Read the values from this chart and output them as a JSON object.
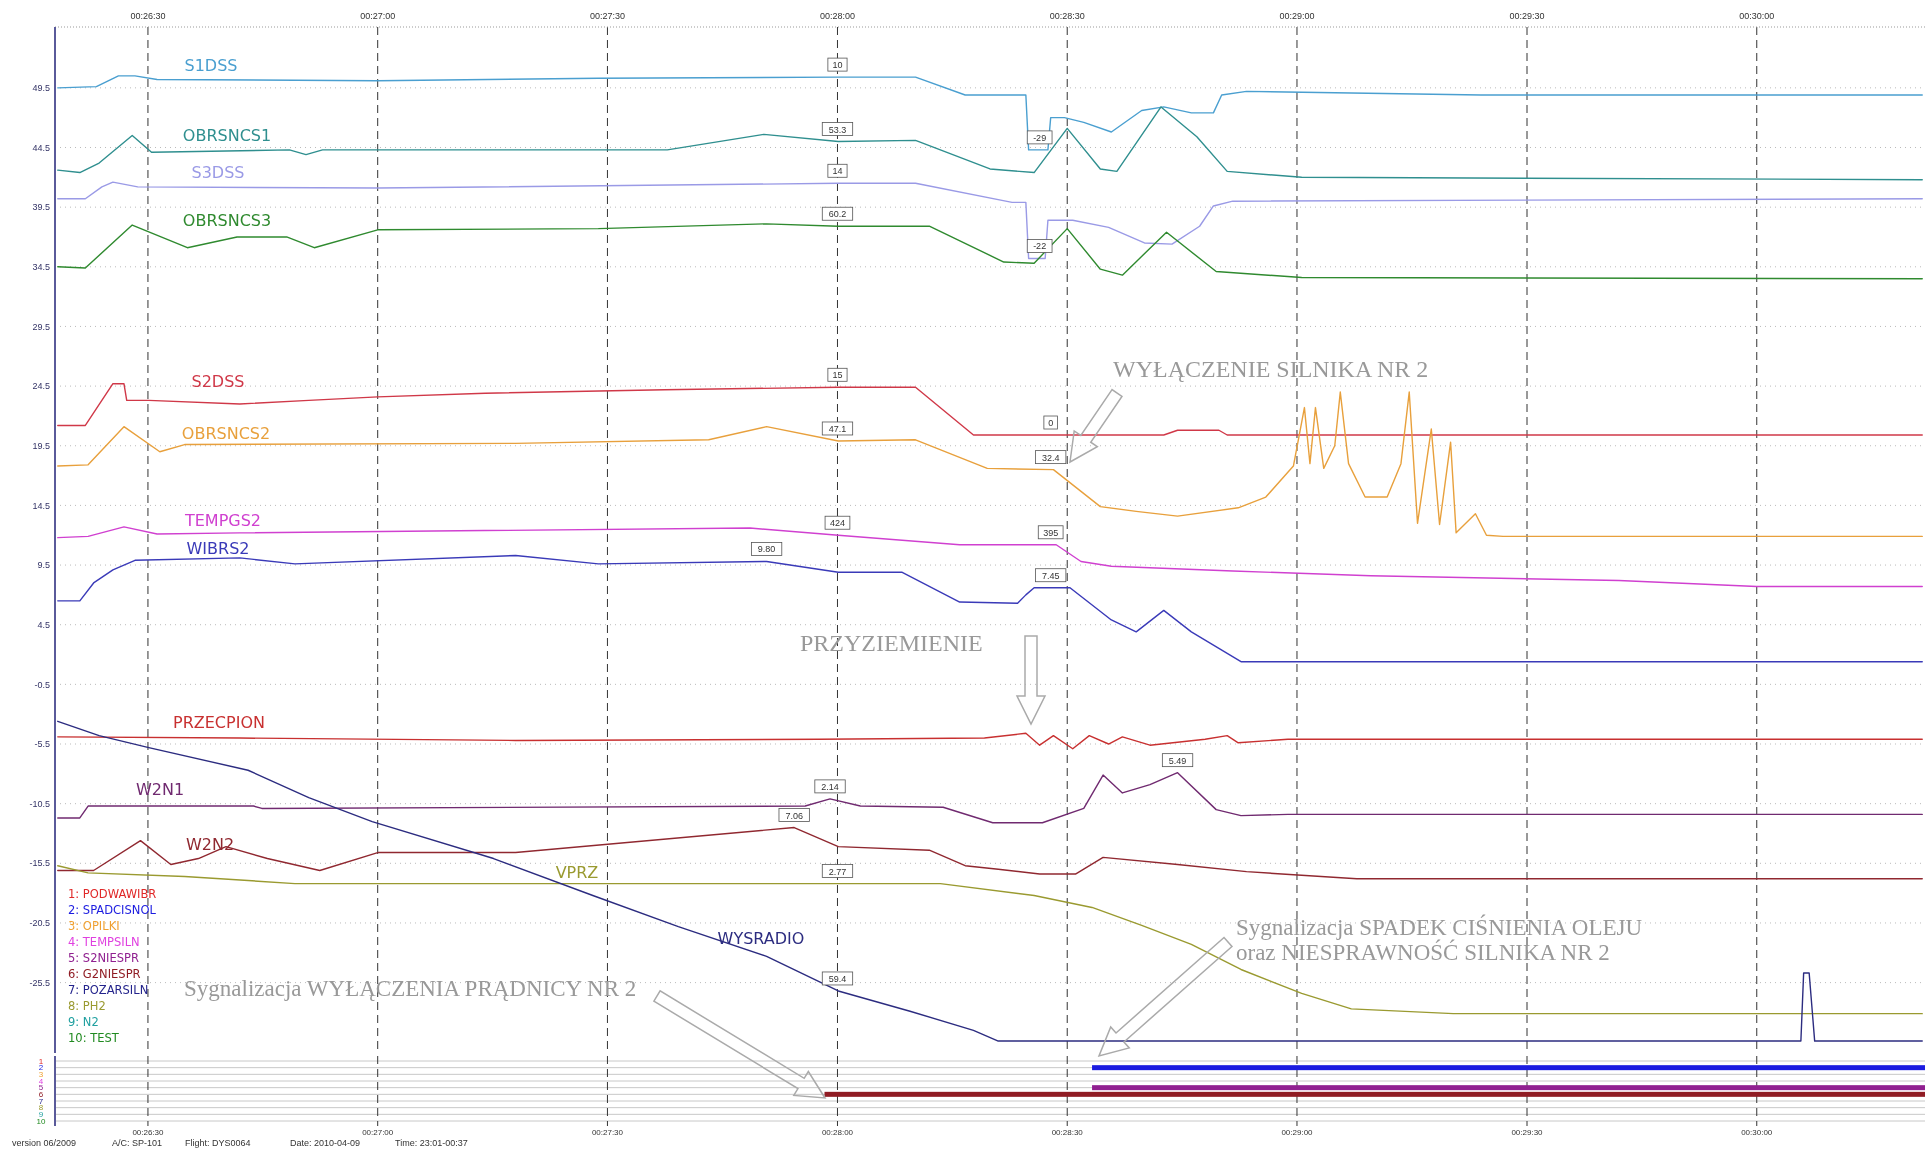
{
  "chart_data": [
    {
      "type": "line",
      "xlim": [
        0.4383,
        0.5061
      ],
      "ylim": [
        -31.4,
        54.6
      ],
      "xticks": [
        {
          "value": 0.44167,
          "label": "00:26:30"
        },
        {
          "value": 0.45,
          "label": "00:27:00"
        },
        {
          "value": 0.45833,
          "label": "00:27:30"
        },
        {
          "value": 0.46667,
          "label": "00:28:00"
        },
        {
          "value": 0.475,
          "label": "00:28:30"
        },
        {
          "value": 0.48333,
          "label": "00:29:00"
        },
        {
          "value": 0.49167,
          "label": "00:29:30"
        },
        {
          "value": 0.5,
          "label": "00:30:00"
        }
      ],
      "yticks": [
        49.5,
        44.5,
        39.5,
        34.5,
        29.5,
        24.5,
        19.5,
        14.5,
        9.5,
        4.5,
        -0.5,
        -5.5,
        -10.5,
        -15.5,
        -20.5,
        -25.5
      ],
      "grid": true,
      "series": [
        {
          "name": "S1DSS",
          "color": "#4a9fd0",
          "x": [
            0.4384,
            0.4398,
            0.4406,
            0.4412,
            0.442,
            0.45,
            0.458,
            0.4667,
            0.4695,
            0.4713,
            0.4735,
            0.4736,
            0.4743,
            0.4744,
            0.4749,
            0.4756,
            0.4766,
            0.4777,
            0.4785,
            0.4795,
            0.4803,
            0.4806,
            0.4815,
            0.49,
            0.506
          ],
          "values": [
            49.5,
            49.6,
            50.5,
            50.5,
            50.2,
            50.1,
            50.3,
            50.4,
            50.4,
            48.9,
            48.9,
            44.3,
            44.3,
            47.0,
            47.0,
            46.6,
            45.8,
            47.6,
            47.9,
            47.4,
            47.4,
            48.9,
            49.2,
            48.9,
            48.9
          ]
        },
        {
          "name": "OBRSNCS1",
          "color": "#2f8f8f",
          "x": [
            0.4384,
            0.4392,
            0.4399,
            0.4411,
            0.4418,
            0.4468,
            0.4474,
            0.448,
            0.4605,
            0.464,
            0.4667,
            0.4695,
            0.4722,
            0.4738,
            0.475,
            0.4762,
            0.4768,
            0.4784,
            0.4797,
            0.4808,
            0.4835,
            0.506
          ],
          "values": [
            42.6,
            42.4,
            43.2,
            45.5,
            44.1,
            44.3,
            43.9,
            44.3,
            44.3,
            45.6,
            45.0,
            45.1,
            42.7,
            42.4,
            46.1,
            42.7,
            42.5,
            47.9,
            45.4,
            42.5,
            42.0,
            41.8
          ]
        },
        {
          "name": "S3DSS",
          "color": "#9a9ae6",
          "x": [
            0.4384,
            0.4394,
            0.44,
            0.4404,
            0.4413,
            0.45,
            0.4667,
            0.4695,
            0.473,
            0.4735,
            0.4736,
            0.4742,
            0.4743,
            0.4752,
            0.4765,
            0.4778,
            0.4788,
            0.4798,
            0.4803,
            0.481,
            0.506
          ],
          "values": [
            40.2,
            40.2,
            41.2,
            41.6,
            41.2,
            41.1,
            41.5,
            41.5,
            39.9,
            39.9,
            35.2,
            35.2,
            38.4,
            38.4,
            37.8,
            36.5,
            36.4,
            37.9,
            39.6,
            40.0,
            40.2
          ]
        },
        {
          "name": "OBRSNCS3",
          "color": "#2f8a2f",
          "x": [
            0.4384,
            0.4394,
            0.4411,
            0.4431,
            0.4449,
            0.4467,
            0.4477,
            0.45,
            0.458,
            0.4641,
            0.4667,
            0.47,
            0.4727,
            0.4738,
            0.475,
            0.4762,
            0.477,
            0.4786,
            0.4804,
            0.4835,
            0.506
          ],
          "values": [
            34.5,
            34.4,
            38.0,
            36.1,
            37.0,
            37.0,
            36.1,
            37.6,
            37.7,
            38.1,
            37.9,
            37.9,
            34.9,
            34.8,
            37.7,
            34.3,
            33.8,
            37.4,
            34.1,
            33.6,
            33.5
          ]
        },
        {
          "name": "S2DSS",
          "color": "#d03848",
          "x": [
            0.4384,
            0.4394,
            0.4404,
            0.4408,
            0.4409,
            0.4417,
            0.445,
            0.4475,
            0.45,
            0.4539,
            0.4604,
            0.4667,
            0.4695,
            0.4716,
            0.4785,
            0.479,
            0.4805,
            0.4808,
            0.506
          ],
          "values": [
            21.2,
            21.2,
            24.7,
            24.7,
            23.3,
            23.3,
            23.0,
            23.3,
            23.6,
            23.9,
            24.2,
            24.4,
            24.4,
            20.4,
            20.4,
            20.8,
            20.8,
            20.4,
            20.4
          ]
        },
        {
          "name": "OBRSNCS2",
          "color": "#e8a03c",
          "x": [
            0.4384,
            0.4395,
            0.4408,
            0.4421,
            0.443,
            0.455,
            0.462,
            0.4641,
            0.4667,
            0.4695,
            0.4721,
            0.4745,
            0.4762,
            0.4775,
            0.479,
            0.4812,
            0.4822,
            0.4832,
            0.4836,
            0.4838,
            0.484,
            0.4843,
            0.4847,
            0.4849,
            0.4852,
            0.4858,
            0.4866,
            0.4871,
            0.4874,
            0.4877,
            0.4882,
            0.4885,
            0.4889,
            0.4891,
            0.4898,
            0.4902,
            0.4908,
            0.506
          ],
          "values": [
            17.8,
            17.9,
            21.1,
            19.0,
            19.6,
            19.7,
            20.0,
            21.1,
            19.9,
            20.0,
            17.6,
            17.5,
            14.4,
            14.0,
            13.6,
            14.3,
            15.2,
            17.8,
            22.7,
            18.0,
            22.7,
            17.6,
            19.5,
            24.0,
            18.0,
            15.2,
            15.2,
            18.0,
            24.0,
            13.0,
            20.9,
            12.9,
            19.8,
            12.2,
            13.8,
            12.0,
            11.9,
            11.9
          ]
        },
        {
          "name": "TEMPGS2",
          "color": "#d040d0",
          "x": [
            0.4384,
            0.4395,
            0.4408,
            0.442,
            0.445,
            0.4635,
            0.4667,
            0.4711,
            0.4746,
            0.4755,
            0.4766,
            0.481,
            0.486,
            0.495,
            0.5,
            0.506
          ],
          "values": [
            11.8,
            11.9,
            12.7,
            12.1,
            12.2,
            12.6,
            12.0,
            11.2,
            11.2,
            9.8,
            9.4,
            9.0,
            8.6,
            8.2,
            7.7,
            7.7
          ]
        },
        {
          "name": "WIBRS2",
          "color": "#3a3ab8",
          "x": [
            0.4384,
            0.4392,
            0.4397,
            0.4404,
            0.4412,
            0.445,
            0.447,
            0.455,
            0.458,
            0.4641,
            0.4667,
            0.469,
            0.4711,
            0.4732,
            0.4735,
            0.4738,
            0.4751,
            0.4766,
            0.4775,
            0.4785,
            0.4795,
            0.4813,
            0.506
          ],
          "values": [
            6.5,
            6.5,
            8.0,
            9.1,
            9.9,
            10.1,
            9.6,
            10.3,
            9.6,
            9.8,
            8.9,
            8.9,
            6.4,
            6.3,
            7.0,
            7.6,
            7.6,
            4.9,
            3.9,
            5.7,
            3.9,
            1.4,
            1.4
          ]
        },
        {
          "name": "PRZECPION",
          "color": "#c83030",
          "x": [
            0.4384,
            0.445,
            0.455,
            0.466,
            0.472,
            0.4735,
            0.474,
            0.4745,
            0.4752,
            0.4758,
            0.4765,
            0.477,
            0.478,
            0.48,
            0.4808,
            0.4812,
            0.483,
            0.506
          ],
          "values": [
            -4.9,
            -5.0,
            -5.2,
            -5.1,
            -5.0,
            -4.6,
            -5.6,
            -4.8,
            -5.9,
            -4.8,
            -5.5,
            -4.9,
            -5.6,
            -5.1,
            -4.8,
            -5.4,
            -5.1,
            -5.1
          ]
        },
        {
          "name": "W2N1",
          "color": "#702a70",
          "x": [
            0.4384,
            0.4392,
            0.4395,
            0.4455,
            0.4458,
            0.4655,
            0.4664,
            0.4675,
            0.4705,
            0.4723,
            0.4741,
            0.4756,
            0.4763,
            0.477,
            0.478,
            0.479,
            0.4804,
            0.4813,
            0.483,
            0.506
          ],
          "values": [
            -11.7,
            -11.7,
            -10.7,
            -10.7,
            -10.9,
            -10.7,
            -10.1,
            -10.7,
            -10.8,
            -12.1,
            -12.1,
            -10.9,
            -8.1,
            -9.6,
            -8.9,
            -7.9,
            -11.0,
            -11.5,
            -11.4,
            -11.4
          ]
        },
        {
          "name": "W2N2",
          "color": "#902830",
          "x": [
            0.4384,
            0.4397,
            0.4414,
            0.4425,
            0.4435,
            0.4445,
            0.446,
            0.4479,
            0.45,
            0.455,
            0.4651,
            0.4667,
            0.47,
            0.4713,
            0.4725,
            0.474,
            0.4753,
            0.4763,
            0.479,
            0.4815,
            0.4855,
            0.506
          ],
          "values": [
            -16.1,
            -16.1,
            -13.6,
            -15.6,
            -15.1,
            -14.1,
            -15.1,
            -16.1,
            -14.6,
            -14.6,
            -12.5,
            -14.1,
            -14.4,
            -15.7,
            -16.0,
            -16.4,
            -16.4,
            -15.0,
            -15.6,
            -16.2,
            -16.8,
            -16.8
          ]
        },
        {
          "name": "VPRZ",
          "color": "#9a9a30",
          "x": [
            0.4384,
            0.4395,
            0.443,
            0.447,
            0.4704,
            0.4738,
            0.4759,
            0.4777,
            0.4795,
            0.4813,
            0.4835,
            0.4853,
            0.489,
            0.506
          ],
          "values": [
            -15.7,
            -16.3,
            -16.6,
            -17.2,
            -17.2,
            -18.2,
            -19.2,
            -20.7,
            -22.3,
            -24.4,
            -26.4,
            -27.7,
            -28.1,
            -28.1
          ]
        },
        {
          "name": "WYSRADIO",
          "color": "#2c2c80",
          "x": [
            0.4384,
            0.4399,
            0.4417,
            0.4453,
            0.4475,
            0.4498,
            0.4542,
            0.4578,
            0.4609,
            0.4641,
            0.4667,
            0.4693,
            0.4716,
            0.4725,
            0.5016,
            0.5017,
            0.5019,
            0.5021,
            0.506
          ],
          "values": [
            -3.6,
            -4.8,
            -5.8,
            -7.7,
            -10.0,
            -12.0,
            -15.1,
            -18.2,
            -20.8,
            -23.3,
            -26.2,
            -27.9,
            -29.5,
            -30.4,
            -30.4,
            -24.7,
            -24.7,
            -30.4,
            -30.4
          ]
        }
      ],
      "annotations": [
        {
          "text": "10",
          "x": 0.46667,
          "y": 50.4
        },
        {
          "text": "53.3",
          "x": 0.46667,
          "y": 45.0
        },
        {
          "text": "14",
          "x": 0.46667,
          "y": 41.5
        },
        {
          "text": "60.2",
          "x": 0.46667,
          "y": 37.9
        },
        {
          "text": "15",
          "x": 0.46667,
          "y": 24.4
        },
        {
          "text": "47.1",
          "x": 0.46667,
          "y": 19.9
        },
        {
          "text": "424",
          "x": 0.46667,
          "y": 12.0
        },
        {
          "text": "9.80",
          "x": 0.4641,
          "y": 9.8
        },
        {
          "text": "2.14",
          "x": 0.4664,
          "y": -10.1
        },
        {
          "text": "7.06",
          "x": 0.4651,
          "y": -12.5
        },
        {
          "text": "2.77",
          "x": 0.46667,
          "y": -17.2
        },
        {
          "text": "59.4",
          "x": 0.46667,
          "y": -26.2
        },
        {
          "text": "-29",
          "x": 0.474,
          "y": 44.3
        },
        {
          "text": "-22",
          "x": 0.474,
          "y": 35.2
        },
        {
          "text": "0",
          "x": 0.4744,
          "y": 20.4
        },
        {
          "text": "32.4",
          "x": 0.4744,
          "y": 17.5
        },
        {
          "text": "395",
          "x": 0.4744,
          "y": 11.2
        },
        {
          "text": "7.45",
          "x": 0.4744,
          "y": 7.6
        },
        {
          "text": "5.49",
          "x": 0.479,
          "y": -7.9
        },
        "WYŁĄCZENIE SILNIKA NR 2",
        "PRZYZIEMIENIE"
      ]
    },
    {
      "type": "bar",
      "orientation": "horizontal",
      "xlim": [
        0.4383,
        0.5061
      ],
      "xticks": [
        {
          "value": 0.44167,
          "label": "00:26:30"
        },
        {
          "value": 0.45,
          "label": "00:27:00"
        },
        {
          "value": 0.45833,
          "label": "00:27:30"
        },
        {
          "value": 0.46667,
          "label": "00:28:00"
        },
        {
          "value": 0.475,
          "label": "00:28:30"
        },
        {
          "value": 0.48333,
          "label": "00:29:00"
        },
        {
          "value": 0.49167,
          "label": "00:29:30"
        },
        {
          "value": 0.5,
          "label": "00:30:00"
        }
      ],
      "grid": true,
      "categories": [
        "1",
        "2",
        "3",
        "4",
        "5",
        "6",
        "7",
        "8",
        "9",
        "10"
      ],
      "series": [
        {
          "name": "1: PODWAWIBR",
          "color": "#e02828",
          "values": [
            null,
            null,
            null,
            null,
            null,
            null,
            null,
            null,
            null,
            null
          ]
        },
        {
          "name": "2: SPADCISNOL",
          "color": "#1c1ce0",
          "base": [
            null,
            0.4759,
            null,
            null,
            null,
            null,
            null,
            null,
            null,
            null
          ],
          "values": [
            null,
            0.0302,
            null,
            null,
            null,
            null,
            null,
            null,
            null,
            null
          ]
        },
        {
          "name": "3: OPILKI",
          "color": "#f0a030",
          "values": [
            null,
            null,
            null,
            null,
            null,
            null,
            null,
            null,
            null,
            null
          ]
        },
        {
          "name": "4: TEMPSILN",
          "color": "#e040e0",
          "values": [
            null,
            null,
            null,
            null,
            null,
            null,
            null,
            null,
            null,
            null
          ]
        },
        {
          "name": "5: S2NIESPR",
          "color": "#902090",
          "base": [
            null,
            null,
            null,
            null,
            0.4759,
            null,
            null,
            null,
            null,
            null
          ],
          "values": [
            null,
            null,
            null,
            null,
            0.0302,
            null,
            null,
            null,
            null,
            null
          ]
        },
        {
          "name": "6: G2NIESPR",
          "color": "#901c24",
          "base": [
            null,
            null,
            null,
            null,
            null,
            0.4662,
            null,
            null,
            null,
            null
          ],
          "values": [
            null,
            null,
            null,
            null,
            null,
            0.0399,
            null,
            null,
            null,
            null
          ]
        },
        {
          "name": "7: POZARSILN",
          "color": "#24248c",
          "values": [
            null,
            null,
            null,
            null,
            null,
            null,
            null,
            null,
            null,
            null
          ]
        },
        {
          "name": "8: PH2",
          "color": "#9a9a30",
          "values": [
            null,
            null,
            null,
            null,
            null,
            null,
            null,
            null,
            null,
            null
          ]
        },
        {
          "name": "9: N2",
          "color": "#20a0a0",
          "values": [
            null,
            null,
            null,
            null,
            null,
            null,
            null,
            null,
            null,
            null
          ]
        },
        {
          "name": "10: TEST",
          "color": "#208a20",
          "values": [
            null,
            null,
            null,
            null,
            null,
            null,
            null,
            null,
            null,
            null
          ]
        }
      ],
      "annotations": [
        "Sygnalizacja SPADEK CIŚNIENIA OLEJU oraz NIESPRAWNOŚĆ SILNIKA NR 2",
        "Sygnalizacja WYŁĄCZENIA PRĄDNICY NR 2",
        "version 06/2009",
        "A/C: SP-101",
        "Flight: DYS0064",
        "Date: 2010-04-09",
        "Time: 23:01-00:37"
      ]
    }
  ]
}
